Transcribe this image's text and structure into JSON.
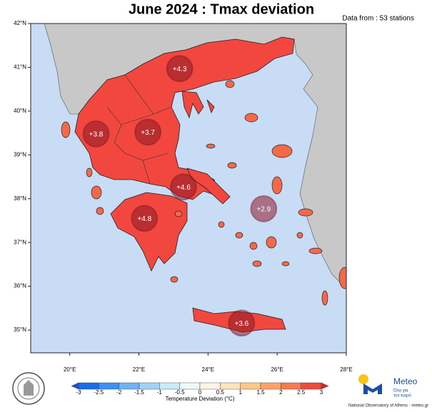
{
  "map": {
    "title": "June 2024 : Tmax deviation",
    "source_note": "Data from : 53 stations",
    "lat_range": [
      34.48,
      42
    ],
    "lon_range": [
      18.87,
      28
    ],
    "lat_ticks": [
      {
        "value": 42,
        "label": "42°N"
      },
      {
        "value": 41,
        "label": "41°N"
      },
      {
        "value": 40,
        "label": "40°N"
      },
      {
        "value": 39,
        "label": "39°N"
      },
      {
        "value": 38,
        "label": "38°N"
      },
      {
        "value": 37,
        "label": "37°N"
      },
      {
        "value": 36,
        "label": "36°N"
      },
      {
        "value": 35,
        "label": "35°N"
      }
    ],
    "lon_ticks": [
      {
        "value": 20,
        "label": "20°E"
      },
      {
        "value": 22,
        "label": "22°E"
      },
      {
        "value": 24,
        "label": "24°E"
      },
      {
        "value": 26,
        "label": "26°E"
      },
      {
        "value": 28,
        "label": "28°E"
      }
    ],
    "stations": [
      {
        "lat": 40.97,
        "lon": 23.18,
        "value": 4.3,
        "label": "+4.3"
      },
      {
        "lat": 39.48,
        "lon": 20.76,
        "value": 3.8,
        "label": "+3.8"
      },
      {
        "lat": 39.52,
        "lon": 22.26,
        "value": 3.7,
        "label": "+3.7"
      },
      {
        "lat": 38.27,
        "lon": 23.29,
        "value": 4.6,
        "label": "+4.6"
      },
      {
        "lat": 37.77,
        "lon": 25.61,
        "value": 2.9,
        "label": "+2.9"
      },
      {
        "lat": 37.55,
        "lon": 22.16,
        "value": 4.8,
        "label": "+4.8"
      },
      {
        "lat": 35.16,
        "lon": 24.97,
        "value": 3.6,
        "label": "+3.6"
      }
    ],
    "colorbar": {
      "title": "Temperature Deviation (°C)",
      "range": [
        -3,
        3
      ],
      "ticks": [
        -3,
        -2.5,
        -2,
        -1.5,
        -1,
        -0.5,
        0,
        0.5,
        1,
        1.5,
        2,
        2.5,
        3
      ],
      "colors": [
        "#1a6bf0",
        "#3d8ef5",
        "#6db4f5",
        "#9fd3f7",
        "#c9ecf7",
        "#eef9f9",
        "#fdf6e8",
        "#fde4bf",
        "#fdc88a",
        "#fca36a",
        "#f77b50",
        "#ef4b3c"
      ],
      "under_color": "#1f4fd6",
      "over_color": "#d92525"
    },
    "logo": {
      "name": "Meteo",
      "tagline": [
        "Όλα για",
        "τον καιρό"
      ],
      "footer": "National Observatory of Athens - meteo.gr"
    }
  }
}
